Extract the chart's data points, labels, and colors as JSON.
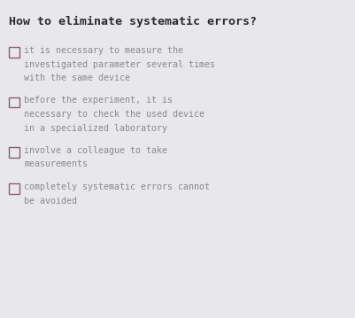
{
  "title": "How to eliminate systematic errors?",
  "title_fontsize": 9.5,
  "title_color": "#2a2a2a",
  "background_color": "#e8e8ec",
  "text_color": "#8a8a8a",
  "text_fontsize": 7.2,
  "font_family": "monospace",
  "items": [
    {
      "lines": [
        "it is necessary to measure the",
        "investigated parameter several times",
        "with the same device"
      ]
    },
    {
      "lines": [
        "before the experiment, it is",
        "necessary to check the used device",
        "in a specialized laboratory"
      ]
    },
    {
      "lines": [
        "involve a colleague to take",
        "measurements"
      ]
    },
    {
      "lines": [
        "completely systematic errors cannot",
        "be avoided"
      ]
    }
  ],
  "checkbox_color": "#8a6060",
  "checkbox_linewidth": 1.0,
  "checkbox_size_pts": 9
}
